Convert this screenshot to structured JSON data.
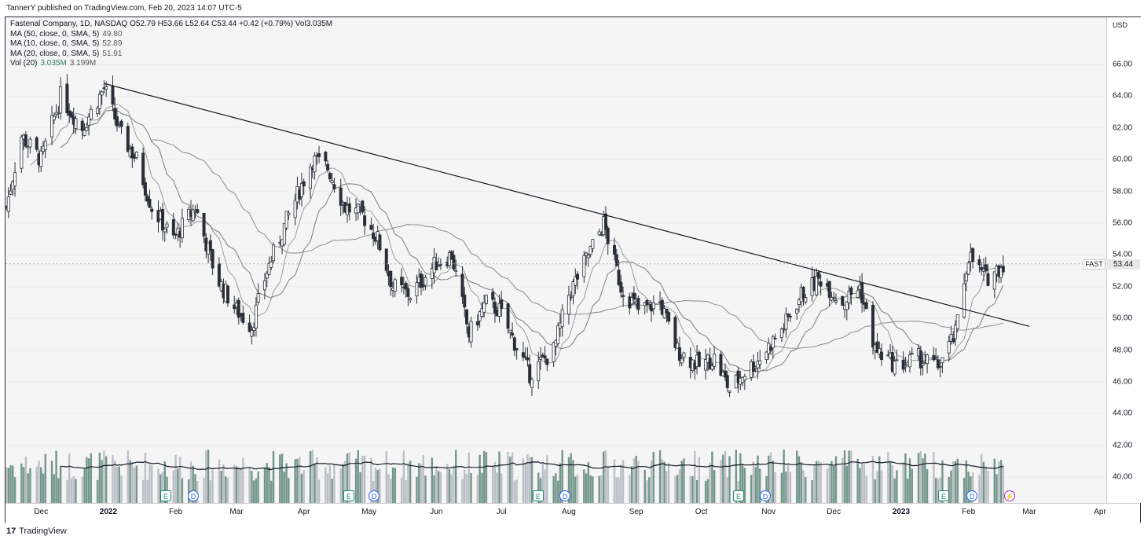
{
  "header": {
    "published": "TannerY published on TradingView.com, Feb 20, 2023 14:07 UTC-5"
  },
  "legend": {
    "title": "Fastenal Company, 1D, NASDAQ  O52.79  H53.66  L52.64  C53.44  +0.42 (+0.79%)  Vol3.035M",
    "ma50_label": "MA (50, close, 0, SMA, 5)",
    "ma50_value": "49.80",
    "ma10_label": "MA (10, close, 0, SMA, 5)",
    "ma10_value": "52.89",
    "ma20_label": "MA (20, close, 0, SMA, 5)",
    "ma20_value": "51.91",
    "vol_label": "Vol (20)",
    "vol_value": "3.035M",
    "vol_ma_value": "3.199M"
  },
  "axis": {
    "currency": "USD",
    "symbol": "FAST",
    "last_price": "53.44"
  },
  "events": [
    "E",
    "D",
    "E",
    "D",
    "E",
    "D",
    "E",
    "D",
    "E",
    "D"
  ],
  "footer": {
    "brand": "TradingView",
    "logo": "17"
  },
  "colors": {
    "up": "#2a2e39",
    "down": "#2a2e39",
    "vol_up": "#5c8577",
    "vol_down": "#b2b5be",
    "ma": "#787b86",
    "trend": "#131722"
  },
  "chart_data": {
    "type": "candlestick",
    "x_tick_labels": [
      "Dec",
      "2022",
      "Feb",
      "Mar",
      "Apr",
      "May",
      "Jun",
      "Jul",
      "Aug",
      "Sep",
      "Oct",
      "Nov",
      "Dec",
      "2023",
      "Feb",
      "Mar",
      "Apr"
    ],
    "y_tick_labels": [
      "40.00",
      "42.00",
      "44.00",
      "46.00",
      "48.00",
      "50.00",
      "52.00",
      "54.00",
      "56.00",
      "58.00",
      "60.00",
      "62.00",
      "64.00",
      "66.00"
    ],
    "ylim": [
      38.5,
      68.0
    ],
    "months": [
      "2021-11",
      "2021-12",
      "2022-01",
      "2022-02",
      "2022-03",
      "2022-04",
      "2022-05",
      "2022-06",
      "2022-07",
      "2022-08",
      "2022-09",
      "2022-10",
      "2022-11",
      "2022-12",
      "2023-01",
      "2023-02"
    ],
    "close_path": [
      [
        "2021-11-15",
        57.0
      ],
      [
        "2021-11-22",
        61.5
      ],
      [
        "2021-12-01",
        60.0
      ],
      [
        "2021-12-10",
        64.0
      ],
      [
        "2021-12-20",
        62.0
      ],
      [
        "2021-12-30",
        64.5
      ],
      [
        "2022-01-07",
        61.5
      ],
      [
        "2022-01-14",
        60.0
      ],
      [
        "2022-01-21",
        57.0
      ],
      [
        "2022-01-31",
        55.0
      ],
      [
        "2022-02-10",
        57.0
      ],
      [
        "2022-02-20",
        52.5
      ],
      [
        "2022-03-01",
        50.5
      ],
      [
        "2022-03-08",
        49.5
      ],
      [
        "2022-03-15",
        53.0
      ],
      [
        "2022-03-25",
        56.5
      ],
      [
        "2022-04-05",
        60.0
      ],
      [
        "2022-04-12",
        59.5
      ],
      [
        "2022-04-20",
        57.0
      ],
      [
        "2022-04-28",
        56.5
      ],
      [
        "2022-05-05",
        55.0
      ],
      [
        "2022-05-12",
        52.0
      ],
      [
        "2022-05-20",
        51.5
      ],
      [
        "2022-06-01",
        53.5
      ],
      [
        "2022-06-08",
        54.0
      ],
      [
        "2022-06-16",
        49.0
      ],
      [
        "2022-06-24",
        51.0
      ],
      [
        "2022-06-30",
        50.5
      ],
      [
        "2022-07-14",
        46.5
      ],
      [
        "2022-07-25",
        48.0
      ],
      [
        "2022-08-01",
        51.5
      ],
      [
        "2022-08-10",
        54.0
      ],
      [
        "2022-08-17",
        56.0
      ],
      [
        "2022-08-25",
        52.0
      ],
      [
        "2022-09-02",
        50.5
      ],
      [
        "2022-09-12",
        51.0
      ],
      [
        "2022-09-20",
        48.0
      ],
      [
        "2022-09-30",
        47.0
      ],
      [
        "2022-10-07",
        47.5
      ],
      [
        "2022-10-14",
        45.5
      ],
      [
        "2022-10-20",
        46.5
      ],
      [
        "2022-10-28",
        47.5
      ],
      [
        "2022-11-08",
        49.5
      ],
      [
        "2022-11-16",
        51.5
      ],
      [
        "2022-11-25",
        52.5
      ],
      [
        "2022-12-05",
        51.0
      ],
      [
        "2022-12-13",
        52.0
      ],
      [
        "2022-12-20",
        48.0
      ],
      [
        "2022-12-30",
        47.0
      ],
      [
        "2023-01-09",
        47.5
      ],
      [
        "2023-01-18",
        47.0
      ],
      [
        "2023-01-26",
        49.0
      ],
      [
        "2023-02-01",
        54.0
      ],
      [
        "2023-02-09",
        52.5
      ],
      [
        "2023-02-17",
        53.44
      ]
    ],
    "trend_line": [
      [
        "2021-12-30",
        64.8
      ],
      [
        "2023-03-01",
        49.5
      ]
    ],
    "volume_axis": "hidden"
  }
}
